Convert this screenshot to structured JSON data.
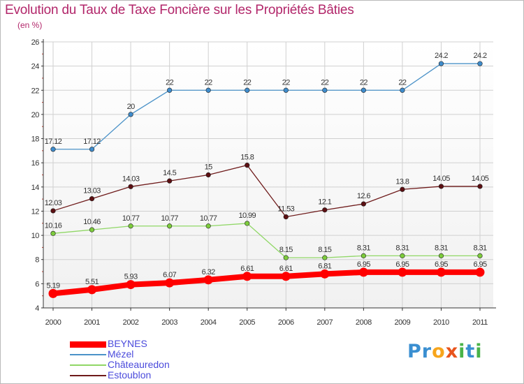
{
  "title": "Evolution du Taux de Taxe Foncière sur les Propriétés Bâties",
  "unit": "(en %)",
  "logo": {
    "text": "Proxiti",
    "letters": [
      {
        "ch": "P",
        "color": "#3a8fd1"
      },
      {
        "ch": "r",
        "color": "#3a8fd1"
      },
      {
        "ch": "o",
        "color": "#f7a51c"
      },
      {
        "ch": "x",
        "color": "#e8541c"
      },
      {
        "ch": "i",
        "color": "#49b349"
      },
      {
        "ch": "t",
        "color": "#3a8fd1"
      },
      {
        "ch": "i",
        "color": "#49b349"
      }
    ]
  },
  "chart_data": {
    "type": "line",
    "x": [
      "2000",
      "2001",
      "2002",
      "2003",
      "2004",
      "2005",
      "2006",
      "2007",
      "2008",
      "2009",
      "2010",
      "2011"
    ],
    "ylim": [
      4,
      26
    ],
    "yticks": [
      4,
      6,
      8,
      10,
      12,
      14,
      16,
      18,
      20,
      22,
      24,
      26
    ],
    "grid": true,
    "legend_position": "bottom-left",
    "series": [
      {
        "name": "BEYNES",
        "color": "#ff0000",
        "thick": true,
        "values": [
          5.19,
          5.51,
          5.93,
          6.07,
          6.32,
          6.61,
          6.61,
          6.81,
          6.95,
          6.95,
          6.95,
          6.95
        ],
        "labels": [
          "5.19",
          "5.51",
          "5.93",
          "6.07",
          "6.32",
          "6.61",
          "6.61",
          "6.81",
          "6.95",
          "6.95",
          "6.95",
          "6.95"
        ]
      },
      {
        "name": "Mézel",
        "color": "#4b92c8",
        "marker": "#3f8ccc",
        "values": [
          17.12,
          17.12,
          20,
          22,
          22,
          22,
          22,
          22,
          22,
          22,
          24.2,
          24.2
        ],
        "labels": [
          "17.12",
          "17.12",
          "20",
          "22",
          "22",
          "22",
          "22",
          "22",
          "22",
          "22",
          "24.2",
          "24.2"
        ]
      },
      {
        "name": "Châteauredon",
        "color": "#90d766",
        "marker": "#7dcc3c",
        "values": [
          10.16,
          10.46,
          10.77,
          10.77,
          10.77,
          10.99,
          8.15,
          8.15,
          8.31,
          8.31,
          8.31,
          8.31
        ],
        "labels": [
          "10.16",
          "10.46",
          "10.77",
          "10.77",
          "10.77",
          "10.99",
          "8.15",
          "8.15",
          "8.31",
          "8.31",
          "8.31",
          "8.31"
        ]
      },
      {
        "name": "Estoublon",
        "color": "#6e1a1a",
        "marker": "#5c0f12",
        "values": [
          12.03,
          13.03,
          14.03,
          14.5,
          15,
          15.8,
          11.53,
          12.1,
          12.6,
          13.8,
          14.05,
          14.05
        ],
        "labels": [
          "12.03",
          "13.03",
          "14.03",
          "14.5",
          "15",
          "15.8",
          "11.53",
          "12.1",
          "12.6",
          "13.8",
          "14.05",
          "14.05"
        ]
      }
    ]
  }
}
